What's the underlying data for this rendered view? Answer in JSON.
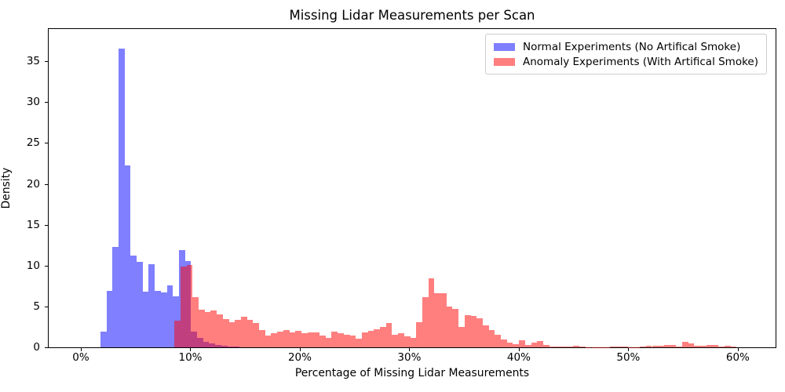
{
  "title": "Missing Lidar Measurements per Scan",
  "axes": {
    "xlabel": "Percentage of Missing Lidar Measurements",
    "ylabel": "Density"
  },
  "legend": {
    "position": "upper right",
    "entries": [
      {
        "label": "Normal Experiments (No Artifical Smoke)",
        "swatch_color": "rgba(0,0,255,0.5)"
      },
      {
        "label": "Anomaly Experiments (With Artifical Smoke)",
        "swatch_color": "rgba(255,0,0,0.5)"
      }
    ]
  },
  "chart_data": {
    "type": "bar",
    "subtype": "overlaid-density-histogram",
    "title": "Missing Lidar Measurements per Scan",
    "xlabel": "Percentage of Missing Lidar Measurements",
    "ylabel": "Density",
    "xlim": [
      -2.94,
      63.45
    ],
    "ylim": [
      0,
      38.96
    ],
    "grid": false,
    "x_tick_values": [
      0,
      10,
      20,
      30,
      40,
      50,
      60
    ],
    "x_tick_labels": [
      "0%",
      "10%",
      "20%",
      "30%",
      "40%",
      "50%",
      "60%"
    ],
    "y_tick_values": [
      0,
      5,
      10,
      15,
      20,
      25,
      30,
      35
    ],
    "series": [
      {
        "id": "normal",
        "name": "Normal Experiments (No Artifical Smoke)",
        "fill": "rgba(0,0,255,0.5)",
        "composited_color_over_white": "#7f7fff",
        "bin_start": 1.78,
        "bin_width": 0.552,
        "densities": [
          1.9,
          6.9,
          12.3,
          36.6,
          22.3,
          11.2,
          10.5,
          6.8,
          10.2,
          6.9,
          6.7,
          7.6,
          6.2,
          11.9,
          10.6,
          1.9,
          1.2,
          0.65,
          0.45,
          0.3,
          0.16,
          0.1,
          0.05
        ]
      },
      {
        "id": "anomaly",
        "name": "Anomaly Experiments (With Artifical Smoke)",
        "fill": "rgba(255,0,0,0.5)",
        "composited_color_over_white": "#ff7f7f",
        "overlap_color_with_normal": "#bf3f7f",
        "bin_start": 8.55,
        "bin_width": 0.552,
        "densities": [
          3.3,
          9.9,
          10.1,
          6.1,
          4.6,
          4.3,
          4.5,
          4.0,
          3.5,
          3.1,
          3.4,
          3.7,
          3.4,
          3.0,
          2.1,
          1.4,
          1.75,
          1.9,
          2.1,
          1.85,
          2.0,
          1.7,
          1.85,
          1.8,
          1.4,
          1.15,
          1.9,
          1.7,
          1.55,
          1.4,
          1.05,
          1.85,
          2.0,
          2.2,
          2.45,
          3.0,
          1.55,
          1.7,
          1.35,
          1.2,
          3.1,
          6.1,
          8.4,
          6.6,
          6.6,
          5.0,
          4.7,
          2.5,
          3.9,
          3.8,
          3.6,
          2.7,
          2.1,
          1.5,
          1.0,
          0.6,
          0.4,
          0.9,
          0.3,
          0.55,
          0.8,
          0.25,
          0.1,
          0.05,
          0.05,
          0.05,
          0.15,
          0.05,
          0.03,
          0.03,
          0.03,
          0.03,
          0.05,
          0.13,
          0.05,
          0.03,
          0.03,
          0.05,
          0.2,
          0.2,
          0.22,
          0.28,
          0.25,
          0.1,
          0.7,
          0.45,
          0.22,
          0.22,
          0.28,
          0.25,
          0.13,
          0.22,
          0.1
        ]
      }
    ]
  }
}
